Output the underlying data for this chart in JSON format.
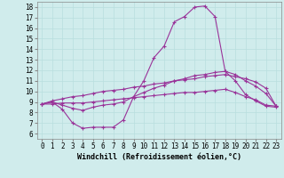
{
  "title": "",
  "xlabel": "Windchill (Refroidissement éolien,°C)",
  "ylabel": "",
  "background_color": "#d0ecec",
  "line_color": "#993399",
  "xlim": [
    -0.5,
    23.5
  ],
  "ylim": [
    5.5,
    18.5
  ],
  "xticks": [
    0,
    1,
    2,
    3,
    4,
    5,
    6,
    7,
    8,
    9,
    10,
    11,
    12,
    13,
    14,
    15,
    16,
    17,
    18,
    19,
    20,
    21,
    22,
    23
  ],
  "yticks": [
    6,
    7,
    8,
    9,
    10,
    11,
    12,
    13,
    14,
    15,
    16,
    17,
    18
  ],
  "line1_x": [
    0,
    1,
    2,
    3,
    4,
    5,
    6,
    7,
    8,
    9,
    10,
    11,
    12,
    13,
    14,
    15,
    16,
    17,
    18,
    19,
    20,
    21,
    22,
    23
  ],
  "line1_y": [
    8.8,
    9.0,
    8.3,
    7.0,
    6.5,
    6.6,
    6.6,
    6.6,
    7.3,
    9.5,
    11.0,
    13.2,
    14.3,
    16.6,
    17.1,
    18.0,
    18.1,
    17.1,
    11.9,
    11.0,
    9.7,
    9.1,
    8.6,
    8.5
  ],
  "line2_x": [
    0,
    1,
    2,
    3,
    4,
    5,
    6,
    7,
    8,
    9,
    10,
    11,
    12,
    13,
    14,
    15,
    16,
    17,
    18,
    19,
    20,
    21,
    22,
    23
  ],
  "line2_y": [
    8.8,
    9.0,
    8.7,
    8.4,
    8.2,
    8.5,
    8.7,
    8.8,
    9.0,
    9.5,
    9.9,
    10.3,
    10.6,
    11.0,
    11.2,
    11.5,
    11.6,
    11.8,
    11.9,
    11.6,
    11.0,
    10.5,
    9.8,
    8.6
  ],
  "line3_x": [
    0,
    1,
    2,
    3,
    4,
    5,
    6,
    7,
    8,
    9,
    10,
    11,
    12,
    13,
    14,
    15,
    16,
    17,
    18,
    19,
    20,
    21,
    22,
    23
  ],
  "line3_y": [
    8.8,
    9.1,
    9.3,
    9.5,
    9.6,
    9.8,
    10.0,
    10.1,
    10.2,
    10.4,
    10.5,
    10.7,
    10.8,
    11.0,
    11.1,
    11.2,
    11.4,
    11.5,
    11.6,
    11.4,
    11.2,
    10.9,
    10.3,
    8.6
  ],
  "line4_x": [
    0,
    1,
    2,
    3,
    4,
    5,
    6,
    7,
    8,
    9,
    10,
    11,
    12,
    13,
    14,
    15,
    16,
    17,
    18,
    19,
    20,
    21,
    22,
    23
  ],
  "line4_y": [
    8.8,
    8.8,
    8.9,
    8.9,
    8.9,
    9.0,
    9.1,
    9.2,
    9.3,
    9.4,
    9.5,
    9.6,
    9.7,
    9.8,
    9.9,
    9.9,
    10.0,
    10.1,
    10.2,
    9.9,
    9.5,
    9.2,
    8.7,
    8.6
  ],
  "grid_color": "#b8dede",
  "xlabel_fontsize": 6,
  "tick_fontsize": 5.5,
  "marker": "+"
}
